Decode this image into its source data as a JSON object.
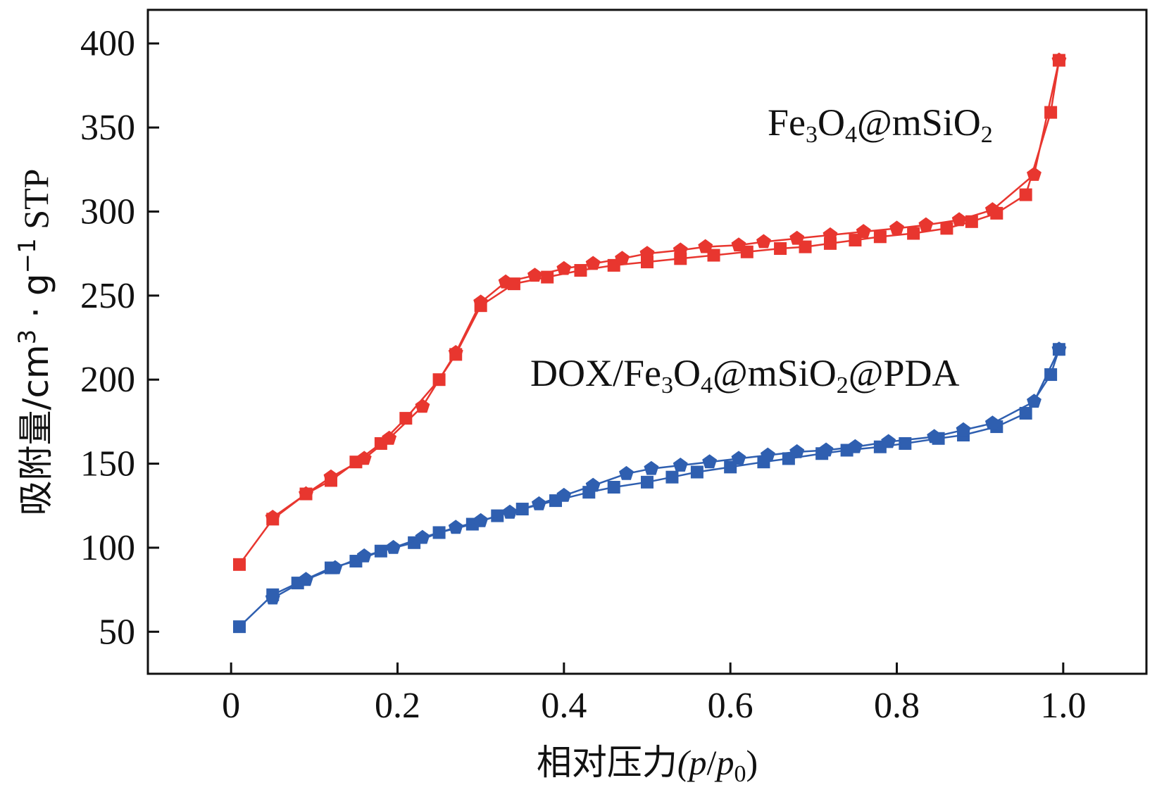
{
  "chart_data": {
    "type": "line",
    "title": "",
    "xlabel": "相对压力",
    "xlabel_var": {
      "p": "p",
      "slash": "/",
      "p0": "p",
      "zero": "0",
      "open": "(",
      "close": ")"
    },
    "ylabel": {
      "main": "吸附量/cm",
      "sup3": "3",
      "mid": " · g",
      "supm1": "−1",
      "end": " STP"
    },
    "xlim": [
      -0.1,
      1.1
    ],
    "ylim": [
      25,
      420
    ],
    "x_ticks": [
      0,
      0.2,
      0.4,
      0.6,
      0.8,
      1.0
    ],
    "x_tick_labels": [
      "0",
      "0.2",
      "0.4",
      "0.6",
      "0.8",
      "1.0"
    ],
    "y_ticks": [
      50,
      100,
      150,
      200,
      250,
      300,
      350,
      400
    ],
    "y_tick_labels": [
      "50",
      "100",
      "150",
      "200",
      "250",
      "300",
      "350",
      "400"
    ],
    "series": [
      {
        "name": "Fe3O4@mSiO2 adsorption",
        "label_parts": {
          "a": "Fe",
          "b": "3",
          "c": "O",
          "d": "4",
          "e": "@mSiO",
          "f": "2"
        },
        "color": "#e8362f",
        "marker": "square",
        "x": [
          0.01,
          0.05,
          0.09,
          0.12,
          0.15,
          0.18,
          0.21,
          0.25,
          0.27,
          0.3,
          0.34,
          0.38,
          0.42,
          0.46,
          0.5,
          0.54,
          0.58,
          0.62,
          0.66,
          0.69,
          0.72,
          0.75,
          0.78,
          0.82,
          0.86,
          0.89,
          0.92,
          0.955,
          0.985,
          0.995
        ],
        "y": [
          90,
          117,
          132,
          140,
          151,
          162,
          177,
          200,
          215,
          244,
          257,
          261,
          265,
          268,
          270,
          272,
          274,
          276,
          278,
          279,
          281,
          283,
          285,
          287,
          290,
          294,
          299,
          310,
          359,
          390
        ]
      },
      {
        "name": "Fe3O4@mSiO2 desorption",
        "color": "#e8362f",
        "marker": "pentagon",
        "x": [
          0.995,
          0.965,
          0.915,
          0.875,
          0.835,
          0.8,
          0.76,
          0.72,
          0.68,
          0.64,
          0.61,
          0.57,
          0.54,
          0.5,
          0.47,
          0.435,
          0.4,
          0.365,
          0.33,
          0.3,
          0.27,
          0.23,
          0.19,
          0.16,
          0.12,
          0.09,
          0.05
        ],
        "y": [
          390,
          322,
          301,
          295,
          292,
          290,
          288,
          286,
          284,
          282,
          280,
          279,
          277,
          275,
          272,
          269,
          266,
          262,
          258,
          246,
          216,
          184,
          165,
          153,
          142,
          132,
          118
        ]
      },
      {
        "name": "DOX/Fe3O4@mSiO2@PDA adsorption",
        "label_parts": {
          "a": "DOX/Fe",
          "b": "3",
          "c": "O",
          "d": "4",
          "e": "@mSiO",
          "f": "2",
          "g": "@PDA"
        },
        "color": "#2f5fb0",
        "marker": "square",
        "x": [
          0.01,
          0.05,
          0.08,
          0.12,
          0.15,
          0.18,
          0.22,
          0.25,
          0.29,
          0.32,
          0.35,
          0.39,
          0.43,
          0.46,
          0.5,
          0.53,
          0.56,
          0.6,
          0.64,
          0.67,
          0.71,
          0.74,
          0.78,
          0.81,
          0.85,
          0.88,
          0.92,
          0.955,
          0.985,
          0.995
        ],
        "y": [
          53,
          72,
          79,
          88,
          92,
          98,
          103,
          109,
          114,
          119,
          123,
          128,
          133,
          136,
          139,
          142,
          145,
          148,
          151,
          153,
          156,
          158,
          160,
          162,
          165,
          167,
          172,
          180,
          203,
          218
        ]
      },
      {
        "name": "DOX/Fe3O4@mSiO2@PDA desorption",
        "color": "#2f5fb0",
        "marker": "pentagon",
        "x": [
          0.995,
          0.965,
          0.915,
          0.88,
          0.845,
          0.79,
          0.75,
          0.715,
          0.68,
          0.645,
          0.61,
          0.575,
          0.54,
          0.505,
          0.475,
          0.435,
          0.4,
          0.37,
          0.335,
          0.3,
          0.27,
          0.23,
          0.195,
          0.16,
          0.125,
          0.09,
          0.05
        ],
        "y": [
          218,
          187,
          174,
          170,
          166,
          163,
          160,
          158,
          157,
          155,
          153,
          151,
          149,
          147,
          144,
          137,
          131,
          126,
          121,
          116,
          112,
          106,
          100,
          95,
          88,
          81,
          70
        ]
      }
    ]
  }
}
